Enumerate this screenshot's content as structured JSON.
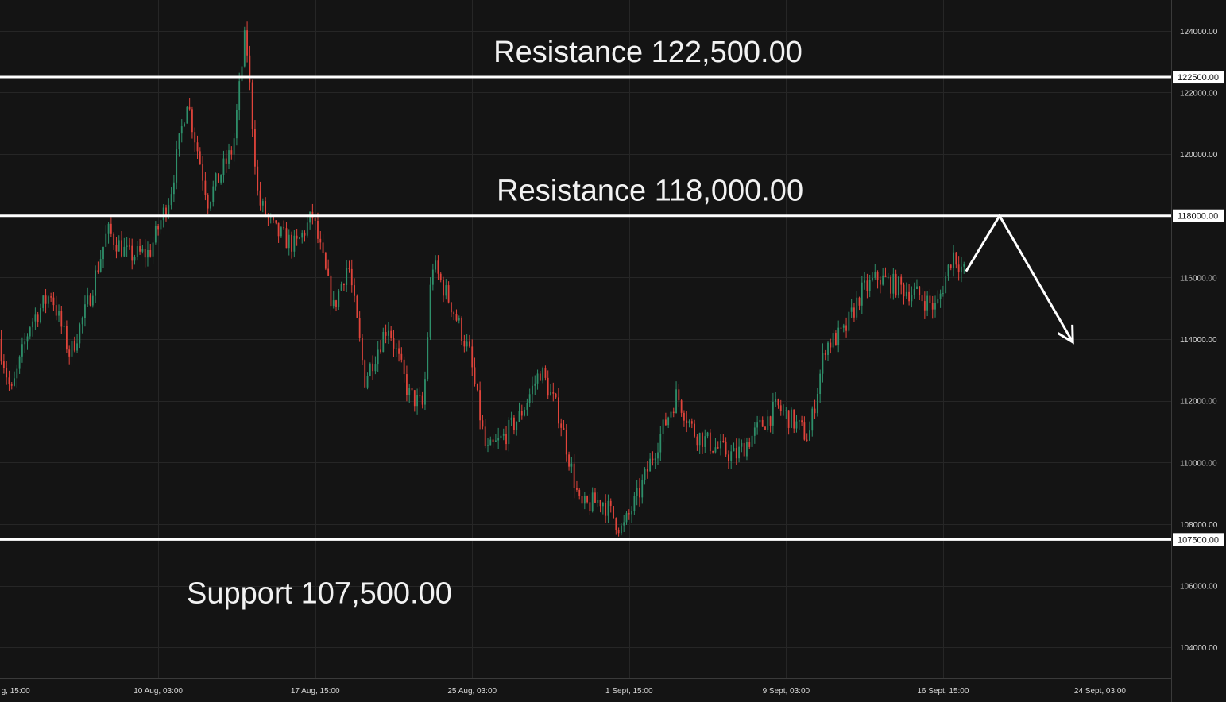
{
  "colors": {
    "background": "#141414",
    "grid": "#262626",
    "up": "#2e8f6a",
    "down": "#e0443b",
    "level_line": "#ffffff",
    "text": "#f2f2f2"
  },
  "chart_data": {
    "type": "candlestick",
    "ylim": [
      103000,
      125000
    ],
    "y_ticks": [
      {
        "value": 124000,
        "label": "124000.00"
      },
      {
        "value": 122000,
        "label": "122000.00"
      },
      {
        "value": 120000,
        "label": "120000.00"
      },
      {
        "value": 116000,
        "label": "116000.00"
      },
      {
        "value": 114000,
        "label": "114000.00"
      },
      {
        "value": 112000,
        "label": "112000.00"
      },
      {
        "value": 110000,
        "label": "110000.00"
      },
      {
        "value": 108000,
        "label": "108000.00"
      },
      {
        "value": 106000,
        "label": "106000.00"
      },
      {
        "value": 104000,
        "label": "104000.00"
      }
    ],
    "x_ticks": [
      {
        "t": 0,
        "label": "g, 15:00"
      },
      {
        "t": 7.5,
        "label": "10 Aug, 03:00"
      },
      {
        "t": 15,
        "label": "17 Aug, 15:00"
      },
      {
        "t": 22.5,
        "label": "25 Aug, 03:00"
      },
      {
        "t": 30,
        "label": "1 Sept, 15:00"
      },
      {
        "t": 37.5,
        "label": "9 Sept, 03:00"
      },
      {
        "t": 45,
        "label": "16 Sept, 15:00"
      },
      {
        "t": 52.5,
        "label": "24 Sept, 03:00"
      }
    ],
    "xlim": [
      -0.06,
      55.9
    ],
    "levels": [
      {
        "value": 122500,
        "axis_label": "122500.00",
        "annotation": "Resistance 122,500.00",
        "anno_t": 30.9
      },
      {
        "value": 118000,
        "axis_label": "118000.00",
        "annotation": "Resistance 118,000.00",
        "anno_t": 31.0
      },
      {
        "value": 107500,
        "axis_label": "107500.00",
        "annotation": "Support 107,500.00",
        "anno_t": 15.2
      }
    ],
    "price_path": [
      [
        0,
        114000
      ],
      [
        0.6,
        112200
      ],
      [
        1.5,
        114500
      ],
      [
        2.5,
        115500
      ],
      [
        3.4,
        113500
      ],
      [
        4.2,
        115000
      ],
      [
        5.2,
        117500
      ],
      [
        6.2,
        116700
      ],
      [
        7.2,
        116800
      ],
      [
        8.2,
        118700
      ],
      [
        9.0,
        121800
      ],
      [
        10.0,
        118500
      ],
      [
        11.2,
        120200
      ],
      [
        11.8,
        124000
      ],
      [
        12.4,
        118500
      ],
      [
        13.2,
        117500
      ],
      [
        14.2,
        117000
      ],
      [
        15.0,
        118000
      ],
      [
        16.0,
        115000
      ],
      [
        16.7,
        116500
      ],
      [
        17.5,
        112700
      ],
      [
        18.6,
        114500
      ],
      [
        19.6,
        112200
      ],
      [
        20.3,
        111800
      ],
      [
        20.7,
        116500
      ],
      [
        21.7,
        115000
      ],
      [
        22.5,
        113500
      ],
      [
        23.3,
        110300
      ],
      [
        24.1,
        110800
      ],
      [
        24.9,
        111500
      ],
      [
        25.9,
        113000
      ],
      [
        26.8,
        111500
      ],
      [
        27.8,
        108500
      ],
      [
        28.8,
        108800
      ],
      [
        29.8,
        107800
      ],
      [
        30.6,
        109000
      ],
      [
        31.4,
        110500
      ],
      [
        32.4,
        112200
      ],
      [
        33.2,
        111000
      ],
      [
        34.2,
        110500
      ],
      [
        35.2,
        110200
      ],
      [
        36.2,
        111000
      ],
      [
        37.2,
        111800
      ],
      [
        38.0,
        111300
      ],
      [
        38.7,
        110800
      ],
      [
        39.5,
        113800
      ],
      [
        40.4,
        114200
      ],
      [
        41.2,
        115500
      ],
      [
        42.0,
        116000
      ],
      [
        43.0,
        115700
      ],
      [
        44.0,
        115400
      ],
      [
        44.8,
        115000
      ],
      [
        45.6,
        116800
      ],
      [
        46.1,
        116200
      ]
    ],
    "projection": [
      [
        46.1,
        116200
      ],
      [
        47.7,
        118000
      ],
      [
        51.2,
        113900
      ]
    ],
    "candle_spacing": 0.125,
    "random_seed": 7
  }
}
